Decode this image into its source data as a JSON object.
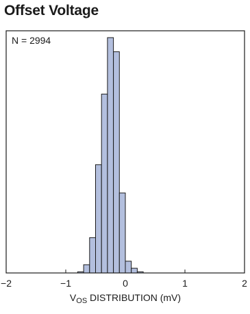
{
  "chart_data": {
    "type": "bar",
    "title": "Offset Voltage",
    "annotation": "N = 2994",
    "xlabel_main": "V",
    "xlabel_sub": "OS",
    "xlabel_rest": " DISTRIBUTION (mV)",
    "xlim": [
      -2,
      2
    ],
    "ylim": [
      0,
      100
    ],
    "xticks": [
      -2,
      -1,
      0,
      1,
      2
    ],
    "xtick_labels": [
      "−2",
      "−1",
      "0",
      "1",
      "2"
    ],
    "bin_edges": [
      -1.0,
      -0.9,
      -0.8,
      -0.7,
      -0.6,
      -0.5,
      -0.4,
      -0.3,
      -0.2,
      -0.1,
      0.0,
      0.1,
      0.2,
      0.3,
      0.4,
      0.5,
      0.6,
      0.7,
      0.8,
      0.9,
      1.0
    ],
    "values": [
      0,
      0,
      0.5,
      3.5,
      15,
      46,
      76,
      100,
      94,
      34,
      5,
      2,
      0.5,
      0,
      0,
      0,
      0,
      0,
      0,
      0
    ],
    "bar_color": "#b3bfde",
    "bar_edge_color": "#1a1a1a",
    "grid": false
  }
}
